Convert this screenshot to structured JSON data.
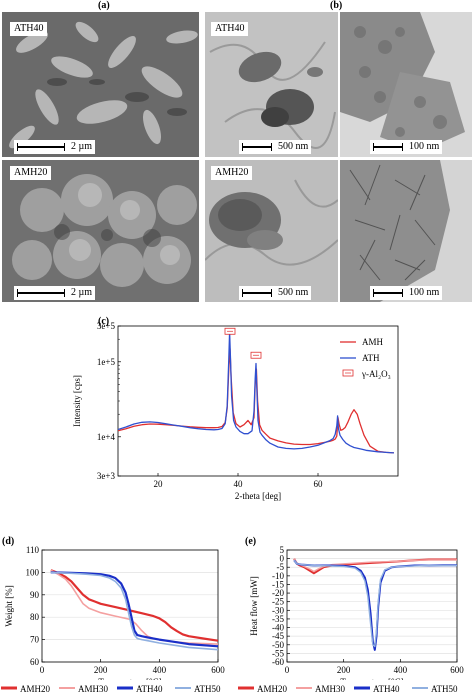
{
  "panels": {
    "a": {
      "label": "(a)",
      "images": [
        {
          "tag": "ATH40",
          "scale": "2 µm"
        },
        {
          "tag": "AMH20",
          "scale": "2 µm"
        }
      ]
    },
    "b": {
      "label": "(b)",
      "images": [
        {
          "tag": "ATH40",
          "scale": "500 nm"
        },
        {
          "tag": "",
          "scale": "100 nm"
        },
        {
          "tag": "AMH20",
          "scale": "500 nm"
        },
        {
          "tag": "",
          "scale": "100 nm"
        }
      ]
    },
    "c": {
      "label": "(c)"
    },
    "d": {
      "label": "(d)"
    },
    "e": {
      "label": "(e)"
    }
  },
  "colors": {
    "amh": "#e03030",
    "ath": "#3050d0"
  },
  "chart_data": [
    {
      "id": "c",
      "type": "line",
      "xlabel": "2-theta [deg]",
      "ylabel": "Intensity [cps]",
      "xlim": [
        10,
        80
      ],
      "ylim": [
        3000,
        300000
      ],
      "yscale": "log",
      "xticks": [
        20,
        40,
        60
      ],
      "yticks": [
        {
          "v": 3000,
          "t": "3e+3"
        },
        {
          "v": 10000,
          "t": "1e+4"
        },
        {
          "v": 100000,
          "t": "1e+5"
        },
        {
          "v": 300000,
          "t": "3e+5"
        }
      ],
      "legend": [
        "AMH",
        "ATH",
        "γ-Al₂O₃"
      ],
      "markers": [
        {
          "x": 38,
          "y": 240000
        },
        {
          "x": 44.5,
          "y": 115000
        }
      ],
      "series": [
        {
          "name": "AMH",
          "color": "#e03030",
          "width": 1.3,
          "x": [
            10,
            12,
            14,
            16,
            18,
            20,
            22,
            24,
            26,
            28,
            30,
            32,
            34,
            35,
            36,
            36.8,
            37.3,
            37.7,
            38.0,
            38.3,
            38.8,
            39.5,
            40.5,
            41.5,
            42.5,
            43.3,
            44.0,
            44.3,
            44.6,
            44.9,
            45.4,
            46,
            47,
            48,
            50,
            52,
            54,
            56,
            58,
            60,
            62,
            63,
            63.8,
            64.3,
            64.7,
            65.0,
            65.3,
            65.7,
            66.2,
            66.8,
            67.5,
            68.3,
            69.0,
            69.8,
            70.5,
            71.5,
            73,
            75,
            77,
            79
          ],
          "y": [
            12000,
            12800,
            13800,
            14500,
            14800,
            14700,
            14500,
            14200,
            13900,
            13600,
            13400,
            13200,
            13200,
            13300,
            13700,
            15500,
            24000,
            80000,
            150000,
            60000,
            21000,
            15000,
            13500,
            14500,
            16500,
            14500,
            18000,
            50000,
            80000,
            30000,
            14500,
            12200,
            10800,
            9600,
            8800,
            8300,
            8000,
            7900,
            7900,
            8100,
            8500,
            8700,
            9000,
            9300,
            10200,
            18000,
            14500,
            12200,
            12500,
            13300,
            15800,
            20000,
            23000,
            20000,
            15000,
            10500,
            7500,
            6400,
            6200,
            6100
          ]
        },
        {
          "name": "ATH",
          "color": "#3050d0",
          "width": 1.3,
          "x": [
            10,
            12,
            14,
            16,
            18,
            20,
            22,
            24,
            26,
            28,
            30,
            32,
            34,
            35,
            36,
            36.8,
            37.3,
            37.7,
            37.9,
            38.1,
            38.4,
            38.9,
            39.5,
            40.5,
            41.5,
            42.5,
            43.5,
            44.0,
            44.3,
            44.5,
            44.7,
            45.0,
            45.5,
            46,
            47,
            48,
            50,
            52,
            54,
            56,
            58,
            60,
            62,
            63,
            63.8,
            64.3,
            64.7,
            64.9,
            65.1,
            65.5,
            66.2,
            67,
            68,
            69,
            70,
            71,
            72,
            73,
            75,
            77,
            79
          ],
          "y": [
            12500,
            13500,
            14800,
            15600,
            15800,
            15500,
            14900,
            14300,
            13800,
            13200,
            12800,
            12500,
            12400,
            12500,
            12900,
            15000,
            26000,
            110000,
            250000,
            120000,
            35000,
            16500,
            13500,
            11800,
            11000,
            11000,
            12000,
            22000,
            60000,
            95000,
            45000,
            16500,
            11500,
            10500,
            9100,
            8200,
            7300,
            7000,
            6900,
            7000,
            7300,
            7700,
            8500,
            8900,
            9500,
            10800,
            14000,
            19000,
            13000,
            10500,
            9200,
            8200,
            7600,
            7200,
            7000,
            6800,
            6600,
            6500,
            6300,
            6200,
            6100
          ]
        }
      ]
    },
    {
      "id": "d",
      "type": "line",
      "xlabel": "Temperature [°C]",
      "ylabel": "Weight [%]",
      "xlim": [
        0,
        600
      ],
      "ylim": [
        60,
        110
      ],
      "xticks": [
        0,
        200,
        400,
        600
      ],
      "yticks": [
        60,
        70,
        80,
        90,
        100,
        110
      ],
      "series": [
        {
          "name": "AMH20",
          "color": "#e03030",
          "width": 2.2,
          "x": [
            30,
            50,
            80,
            100,
            120,
            140,
            160,
            180,
            200,
            250,
            300,
            340,
            380,
            400,
            420,
            440,
            460,
            480,
            500,
            550,
            600
          ],
          "y": [
            101,
            100,
            98,
            96,
            93,
            90,
            88,
            87,
            86,
            84.5,
            83,
            81.8,
            80.5,
            79.5,
            77.8,
            75.5,
            73.8,
            72.3,
            71.5,
            70.5,
            69.5
          ]
        },
        {
          "name": "AMH30",
          "color": "#f4a0a0",
          "width": 1.6,
          "x": [
            30,
            50,
            80,
            100,
            120,
            140,
            160,
            180,
            200,
            250,
            300,
            320,
            340,
            360,
            380,
            400,
            450,
            500,
            600
          ],
          "y": [
            101,
            99.5,
            97,
            94,
            90,
            86,
            84,
            83,
            82,
            80.5,
            79,
            77,
            74,
            71.5,
            70.5,
            70,
            69,
            68.5,
            68
          ]
        },
        {
          "name": "ATH40",
          "color": "#1a2fc8",
          "width": 2.2,
          "x": [
            30,
            100,
            150,
            200,
            230,
            250,
            270,
            285,
            295,
            305,
            315,
            325,
            340,
            360,
            400,
            450,
            500,
            600
          ],
          "y": [
            100,
            99.8,
            99.6,
            99.2,
            98.5,
            97.5,
            95,
            91,
            86,
            80,
            74,
            72,
            71.5,
            71,
            70,
            69,
            68,
            67
          ]
        },
        {
          "name": "ATH50",
          "color": "#90b0e0",
          "width": 1.6,
          "x": [
            30,
            100,
            150,
            200,
            230,
            250,
            270,
            285,
            295,
            305,
            315,
            325,
            340,
            360,
            400,
            450,
            500,
            600
          ],
          "y": [
            100,
            99.6,
            99.2,
            98.6,
            97.5,
            96,
            93,
            88,
            82,
            76,
            72,
            70.5,
            70,
            69.5,
            68.5,
            67.5,
            66.5,
            65.5
          ]
        }
      ]
    },
    {
      "id": "e",
      "type": "line",
      "xlabel": "Temperature [°C]",
      "ylabel": "Heat flow [mW]",
      "xlim": [
        0,
        600
      ],
      "ylim": [
        -60,
        5
      ],
      "xticks": [
        0,
        200,
        400,
        600
      ],
      "yticks": [
        -60,
        -55,
        -50,
        -45,
        -40,
        -35,
        -30,
        -25,
        -20,
        -15,
        -10,
        -5,
        0,
        5
      ],
      "series": [
        {
          "name": "AMH20",
          "color": "#e03030",
          "width": 2.0,
          "x": [
            25,
            35,
            45,
            60,
            80,
            95,
            110,
            130,
            160,
            200,
            250,
            300,
            350,
            400,
            450,
            500,
            550,
            600
          ],
          "y": [
            0,
            -3,
            -4,
            -5,
            -7,
            -8.5,
            -7,
            -5,
            -4,
            -3.5,
            -3,
            -2.5,
            -2,
            -1.5,
            -1,
            -0.5,
            -0.5,
            -0.5
          ]
        },
        {
          "name": "AMH30",
          "color": "#f4a0a0",
          "width": 1.4,
          "x": [
            25,
            35,
            45,
            60,
            80,
            95,
            110,
            130,
            160,
            200,
            250,
            300,
            350,
            400,
            450,
            500,
            550,
            600
          ],
          "y": [
            0,
            -2.5,
            -3.5,
            -4.5,
            -6,
            -7.5,
            -6,
            -4.5,
            -3.5,
            -3,
            -2.5,
            -2,
            -1.8,
            -1.5,
            -1,
            -0.8,
            -0.8,
            -0.8
          ]
        },
        {
          "name": "ATH40",
          "color": "#1a2fc8",
          "width": 2.0,
          "x": [
            25,
            35,
            50,
            100,
            150,
            200,
            240,
            260,
            275,
            285,
            295,
            303,
            310,
            316,
            322,
            330,
            345,
            370,
            400,
            450,
            500,
            550,
            600
          ],
          "y": [
            -1,
            -3,
            -3.5,
            -4,
            -4,
            -4.2,
            -5,
            -7,
            -11,
            -18,
            -32,
            -48,
            -53,
            -45,
            -28,
            -14,
            -7,
            -5,
            -4.5,
            -4,
            -4,
            -3.8,
            -3.8
          ]
        },
        {
          "name": "ATH50",
          "color": "#90b0e0",
          "width": 1.4,
          "x": [
            25,
            35,
            50,
            100,
            150,
            200,
            240,
            260,
            275,
            285,
            295,
            303,
            310,
            316,
            322,
            330,
            345,
            370,
            400,
            450,
            500,
            550,
            600
          ],
          "y": [
            -1,
            -3,
            -3.5,
            -4,
            -4.2,
            -4.5,
            -5.5,
            -8,
            -13,
            -22,
            -38,
            -50,
            -51,
            -42,
            -25,
            -12,
            -6.5,
            -5,
            -4.5,
            -4.2,
            -4,
            -4,
            -4
          ]
        }
      ]
    }
  ],
  "legend_bottom": [
    {
      "name": "AMH20",
      "color": "#e03030",
      "width": 3
    },
    {
      "name": "AMH30",
      "color": "#f4a0a0",
      "width": 2
    },
    {
      "name": "ATH40",
      "color": "#1a2fc8",
      "width": 3
    },
    {
      "name": "ATH50",
      "color": "#90b0e0",
      "width": 2
    }
  ]
}
